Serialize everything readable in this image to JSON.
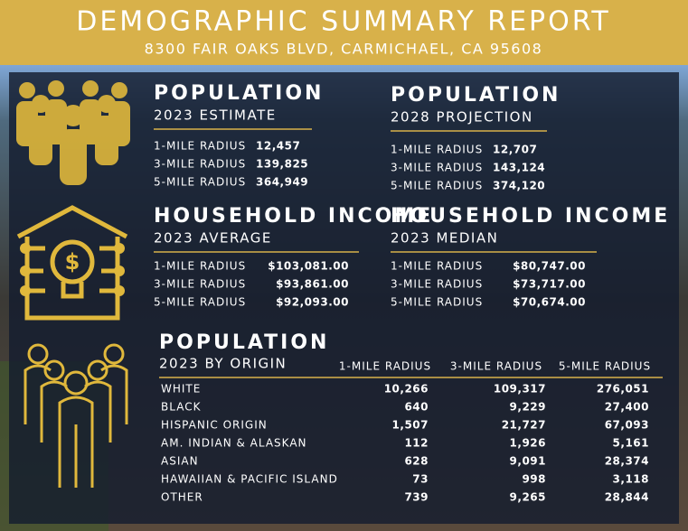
{
  "header": {
    "title": "DEMOGRAPHIC SUMMARY REPORT",
    "subtitle": "8300 FAIR OAKS BLVD, CARMICHAEL, CA 95608"
  },
  "population_2023": {
    "title": "POPULATION",
    "subtitle": "2023 ESTIMATE",
    "rows": [
      [
        "1-MILE RADIUS",
        "12,457"
      ],
      [
        "3-MILE RADIUS",
        "139,825"
      ],
      [
        "5-MILE RADIUS",
        "364,949"
      ]
    ]
  },
  "population_2028": {
    "title": "POPULATION",
    "subtitle": "2028 PROJECTION",
    "rows": [
      [
        "1-MILE RADIUS",
        "12,707"
      ],
      [
        "3-MILE RADIUS",
        "143,124"
      ],
      [
        "5-MILE RADIUS",
        "374,120"
      ]
    ]
  },
  "income_average": {
    "title": "HOUSEHOLD INCOME",
    "subtitle": "2023 AVERAGE",
    "rows": [
      [
        "1-MILE RADIUS",
        "$103,081.00"
      ],
      [
        "3-MILE RADIUS",
        "$93,861.00"
      ],
      [
        "5-MILE RADIUS",
        "$92,093.00"
      ]
    ]
  },
  "income_median": {
    "title": "HOUSEHOLD INCOME",
    "subtitle": "2023 MEDIAN",
    "rows": [
      [
        "1-MILE RADIUS",
        "$80,747.00"
      ],
      [
        "3-MILE RADIUS",
        "$73,717.00"
      ],
      [
        "5-MILE RADIUS",
        "$70,674.00"
      ]
    ]
  },
  "origin": {
    "title": "POPULATION",
    "subtitle": "2023 BY ORIGIN",
    "columns": [
      "1-MILE RADIUS",
      "3-MILE RADIUS",
      "5-MILE RADIUS"
    ],
    "rows": [
      [
        "WHITE",
        "10,266",
        "109,317",
        "276,051"
      ],
      [
        "BLACK",
        "640",
        "9,229",
        "27,400"
      ],
      [
        "HISPANIC ORIGIN",
        "1,507",
        "21,727",
        "67,093"
      ],
      [
        "AM. INDIAN & ALASKAN",
        "112",
        "1,926",
        "5,161"
      ],
      [
        "ASIAN",
        "628",
        "9,091",
        "28,374"
      ],
      [
        "HAWAIIAN & PACIFIC ISLAND",
        "73",
        "998",
        "3,118"
      ],
      [
        "OTHER",
        "739",
        "9,265",
        "28,844"
      ]
    ]
  }
}
